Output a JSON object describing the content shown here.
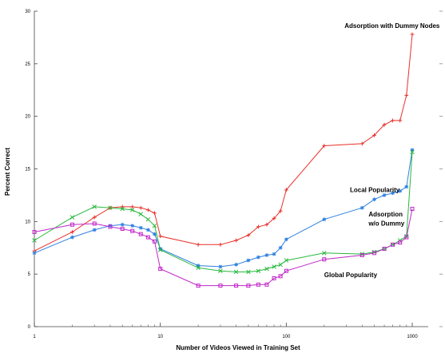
{
  "chart_data": {
    "type": "line",
    "title": "",
    "xlabel": "Number of Videos Viewed in Training Set",
    "ylabel": "Percent Correct",
    "xscale": "log",
    "xlim": [
      1,
      1000
    ],
    "ylim": [
      0,
      30
    ],
    "grid": false,
    "legend": "none",
    "xticks": [
      {
        "value": 1,
        "label": "1"
      },
      {
        "value": 10,
        "label": "10"
      },
      {
        "value": 100,
        "label": "100"
      },
      {
        "value": 1000,
        "label": "1000"
      }
    ],
    "yticks": [
      {
        "value": 0,
        "label": "0"
      },
      {
        "value": 5,
        "label": "5"
      },
      {
        "value": 10,
        "label": "10"
      },
      {
        "value": 15,
        "label": "15"
      },
      {
        "value": 20,
        "label": "20"
      },
      {
        "value": 25,
        "label": "25"
      },
      {
        "value": 30,
        "label": "30"
      }
    ],
    "series": [
      {
        "name": "Adsorption with Dummy Nodes",
        "color": "#e8302a",
        "marker": "plus",
        "x": [
          1,
          2,
          3,
          4,
          5,
          6,
          7,
          8,
          9,
          10,
          20,
          30,
          40,
          50,
          60,
          70,
          80,
          90,
          100,
          200,
          400,
          500,
          600,
          700,
          800,
          900,
          1000
        ],
        "y": [
          7.2,
          9.0,
          10.4,
          11.3,
          11.4,
          11.4,
          11.3,
          11.1,
          10.8,
          8.6,
          7.8,
          7.8,
          8.2,
          8.7,
          9.5,
          9.7,
          10.3,
          11.0,
          13.0,
          17.2,
          17.4,
          18.2,
          19.2,
          19.6,
          19.6,
          22.0,
          27.8
        ]
      },
      {
        "name": "Local Popularity",
        "color": "#2e7fe0",
        "marker": "star",
        "x": [
          1,
          2,
          3,
          4,
          5,
          6,
          7,
          8,
          9,
          10,
          20,
          30,
          40,
          50,
          60,
          70,
          80,
          90,
          100,
          200,
          400,
          500,
          600,
          700,
          800,
          900,
          1000
        ],
        "y": [
          7.0,
          8.5,
          9.2,
          9.6,
          9.7,
          9.6,
          9.4,
          9.2,
          8.8,
          7.4,
          5.8,
          5.7,
          5.9,
          6.3,
          6.6,
          6.8,
          6.9,
          7.5,
          8.3,
          10.2,
          11.3,
          12.1,
          12.5,
          12.7,
          12.9,
          13.3,
          16.8
        ]
      },
      {
        "name": "Adsorption w/o Dummy",
        "color": "#27b83c",
        "marker": "x",
        "x": [
          1,
          2,
          3,
          4,
          5,
          6,
          7,
          8,
          9,
          10,
          20,
          30,
          40,
          50,
          60,
          70,
          80,
          90,
          100,
          200,
          400,
          500,
          600,
          700,
          800,
          900,
          1000
        ],
        "y": [
          8.2,
          10.4,
          11.4,
          11.3,
          11.2,
          11.1,
          10.7,
          10.2,
          9.6,
          7.3,
          5.6,
          5.3,
          5.2,
          5.2,
          5.3,
          5.5,
          5.7,
          5.9,
          6.3,
          7.0,
          6.9,
          7.1,
          7.4,
          7.8,
          8.2,
          8.6,
          16.6
        ]
      },
      {
        "name": "Global Popularity",
        "color": "#c026c8",
        "marker": "square",
        "x": [
          1,
          2,
          3,
          4,
          5,
          6,
          7,
          8,
          9,
          10,
          20,
          30,
          40,
          50,
          60,
          70,
          80,
          90,
          100,
          200,
          400,
          500,
          600,
          700,
          800,
          900,
          1000
        ],
        "y": [
          9.0,
          9.7,
          9.8,
          9.5,
          9.3,
          9.1,
          8.8,
          8.5,
          8.1,
          5.5,
          3.9,
          3.9,
          3.9,
          3.9,
          4.0,
          4.0,
          4.6,
          4.8,
          5.3,
          6.4,
          6.8,
          7.0,
          7.4,
          7.8,
          8.0,
          8.5,
          11.2
        ]
      }
    ],
    "annotations": [
      {
        "text": "Adsorption with Dummy Nodes",
        "x": 290,
        "y": 28.4
      },
      {
        "text": "Local Popularity",
        "x": 320,
        "y": 12.8
      },
      {
        "text": "Adsorption",
        "x": 450,
        "y": 10.5
      },
      {
        "text": "w/o Dummy",
        "x": 450,
        "y": 9.6
      },
      {
        "text": "Global Popularity",
        "x": 200,
        "y": 4.7
      }
    ]
  }
}
